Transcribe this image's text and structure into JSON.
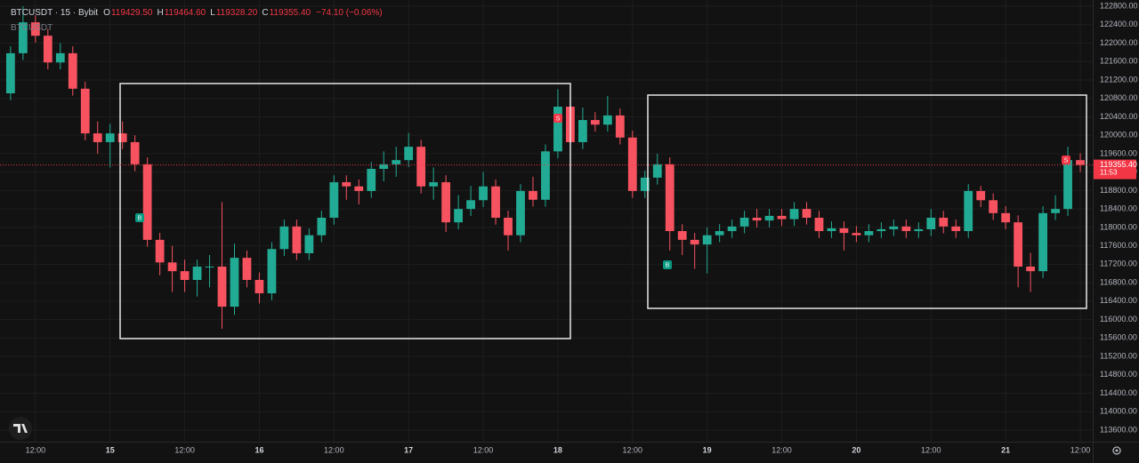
{
  "chart_data": {
    "type": "candlestick",
    "symbol_title": "BTCUSDT · 15 · Bybit",
    "ohlc_legend": [
      {
        "key": "O",
        "value": "119429.50"
      },
      {
        "key": "H",
        "value": "119464.60"
      },
      {
        "key": "L",
        "value": "119328.20"
      },
      {
        "key": "C",
        "value": "119355.40"
      }
    ],
    "change": "−74.10 (−0.06%)",
    "indicator_label": "BTCUSDT",
    "signal_markers": [
      "B",
      "S",
      "B",
      "S"
    ],
    "up_color": "#22ab94",
    "down_color": "#f7525f",
    "grid": true,
    "x": [
      8,
      10,
      12,
      14,
      16,
      18,
      20,
      22,
      24,
      26,
      28,
      30,
      32,
      34,
      36,
      38,
      40,
      42,
      44,
      46,
      48,
      50,
      52,
      54,
      56,
      58,
      60,
      62,
      64,
      66,
      68,
      70,
      72,
      74,
      76,
      78,
      80,
      82,
      84,
      86,
      88,
      90,
      92,
      94,
      96,
      98,
      100,
      102,
      104,
      106,
      108,
      110,
      112,
      114,
      116,
      118,
      120,
      122,
      124,
      126,
      128,
      130,
      132,
      134,
      136,
      138,
      140,
      142,
      144,
      146,
      148,
      150,
      152,
      154,
      156,
      158,
      160,
      162,
      164,
      166,
      168,
      170,
      172,
      174,
      176,
      178,
      180
    ],
    "open": [
      120910,
      121780,
      122450,
      122160,
      121580,
      121780,
      121010,
      120040,
      119850,
      120040,
      119850,
      119370,
      117730,
      117240,
      117050,
      116860,
      117150,
      117150,
      116280,
      117340,
      116860,
      116570,
      117530,
      118020,
      117440,
      117830,
      118210,
      118980,
      118890,
      118790,
      119270,
      119370,
      119460,
      119750,
      118890,
      118980,
      118110,
      118400,
      118590,
      118890,
      118210,
      117830,
      118790,
      118600,
      119650,
      120620,
      119850,
      120330,
      120230,
      120430,
      119950,
      118790,
      119080,
      119370,
      117920,
      117730,
      117630,
      117830,
      117920,
      118020,
      118210,
      118150,
      118250,
      118180,
      118400,
      118210,
      117920,
      117980,
      117880,
      117830,
      117920,
      117960,
      118020,
      117920,
      117960,
      118210,
      118020,
      117920,
      118790,
      118590,
      118310,
      118110,
      117150,
      117050,
      118310,
      118400,
      119460
    ],
    "high": [
      121930,
      122800,
      122600,
      122310,
      122000,
      121930,
      121160,
      120300,
      120250,
      120300,
      120000,
      119520,
      117880,
      117600,
      117300,
      117300,
      117400,
      118550,
      117650,
      117500,
      117020,
      117680,
      118170,
      118170,
      117980,
      118360,
      119130,
      119130,
      119040,
      119420,
      119650,
      119750,
      120050,
      119900,
      119300,
      119130,
      118700,
      118900,
      119200,
      119040,
      118360,
      118940,
      119100,
      119800,
      121000,
      120770,
      120600,
      120500,
      120850,
      120580,
      120100,
      119230,
      119600,
      119520,
      118070,
      117880,
      118000,
      118070,
      118170,
      118360,
      118400,
      118400,
      118400,
      118550,
      118550,
      118360,
      118130,
      118130,
      118030,
      118070,
      118110,
      118170,
      118170,
      118110,
      118400,
      118360,
      118170,
      118940,
      118900,
      118740,
      118460,
      118260,
      117450,
      118460,
      118700,
      119750,
      119610
    ],
    "low": [
      120760,
      121630,
      122010,
      121430,
      121430,
      120860,
      119890,
      119600,
      119300,
      119700,
      119220,
      117580,
      116960,
      116600,
      116600,
      116500,
      116700,
      115800,
      116100,
      116700,
      116350,
      116420,
      117380,
      117290,
      117290,
      117680,
      118060,
      118600,
      118500,
      118640,
      119000,
      119100,
      119310,
      118740,
      118600,
      117900,
      117960,
      118250,
      118440,
      118060,
      117500,
      117680,
      118450,
      118450,
      119500,
      119700,
      119700,
      120080,
      120080,
      119800,
      118640,
      118640,
      118930,
      117500,
      117400,
      117100,
      117000,
      117680,
      117770,
      117870,
      118000,
      118000,
      118030,
      118030,
      118060,
      117770,
      117770,
      117500,
      117680,
      117680,
      117770,
      117810,
      117770,
      117770,
      117810,
      117870,
      117770,
      117770,
      118440,
      118160,
      117960,
      116700,
      116600,
      116900,
      118160,
      118250,
      119200
    ],
    "close": [
      121780,
      122450,
      122160,
      121580,
      121780,
      121010,
      120040,
      119850,
      120040,
      119850,
      119370,
      117730,
      117240,
      117050,
      116860,
      117150,
      117150,
      116280,
      117340,
      116860,
      116570,
      117530,
      118020,
      117440,
      117830,
      118210,
      118980,
      118890,
      118790,
      119270,
      119370,
      119460,
      119750,
      118890,
      118980,
      118110,
      118400,
      118590,
      118890,
      118210,
      117830,
      118790,
      118600,
      119650,
      120620,
      119850,
      120330,
      120230,
      120430,
      119950,
      118790,
      119080,
      119370,
      117920,
      117730,
      117630,
      117830,
      117920,
      118020,
      118210,
      118150,
      118250,
      118180,
      118400,
      118210,
      117920,
      117980,
      117880,
      117830,
      117920,
      117960,
      118020,
      117920,
      117960,
      118210,
      118020,
      117920,
      118790,
      118590,
      118310,
      118110,
      117150,
      117050,
      118310,
      118400,
      119460,
      119355.4
    ],
    "last_price": {
      "value": 119355.4,
      "label": "119355.40"
    },
    "countdown": "11:53",
    "xlim": [
      6.3,
      182
    ],
    "xticks": [
      {
        "value": 12,
        "label": "12:00"
      },
      {
        "value": 24,
        "label": "15"
      },
      {
        "value": 36,
        "label": "12:00"
      },
      {
        "value": 48,
        "label": "16"
      },
      {
        "value": 60,
        "label": "12:00"
      },
      {
        "value": 72,
        "label": "17"
      },
      {
        "value": 84,
        "label": "12:00"
      },
      {
        "value": 96,
        "label": "18"
      },
      {
        "value": 108,
        "label": "12:00"
      },
      {
        "value": 120,
        "label": "19"
      },
      {
        "value": 132,
        "label": "12:00"
      },
      {
        "value": 144,
        "label": "20"
      },
      {
        "value": 156,
        "label": "12:00"
      },
      {
        "value": 168,
        "label": "21"
      },
      {
        "value": 180,
        "label": "12:00"
      }
    ],
    "ylim": [
      113350,
      122935
    ],
    "yticks": [
      {
        "value": 113600,
        "label": "113600.00"
      },
      {
        "value": 114000,
        "label": "114000.00"
      },
      {
        "value": 114400,
        "label": "114400.00"
      },
      {
        "value": 114800,
        "label": "114800.00"
      },
      {
        "value": 115200,
        "label": "115200.00"
      },
      {
        "value": 115600,
        "label": "115600.00"
      },
      {
        "value": 116000,
        "label": "116000.00"
      },
      {
        "value": 116400,
        "label": "116400.00"
      },
      {
        "value": 116800,
        "label": "116800.00"
      },
      {
        "value": 117200,
        "label": "117200.00"
      },
      {
        "value": 117600,
        "label": "117600.00"
      },
      {
        "value": 118000,
        "label": "118000.00"
      },
      {
        "value": 118400,
        "label": "118400.00"
      },
      {
        "value": 118800,
        "label": "118800.00"
      },
      {
        "value": 119200,
        "label": "119200.00"
      },
      {
        "value": 119600,
        "label": "119600.00"
      },
      {
        "value": 120000,
        "label": "120000.00"
      },
      {
        "value": 120400,
        "label": "120400.00"
      },
      {
        "value": 120800,
        "label": "120800.00"
      },
      {
        "value": 121200,
        "label": "121200.00"
      },
      {
        "value": 121600,
        "label": "121600.00"
      },
      {
        "value": 122000,
        "label": "122000.00"
      },
      {
        "value": 122400,
        "label": "122400.00"
      },
      {
        "value": 122800,
        "label": "122800.00"
      }
    ]
  }
}
